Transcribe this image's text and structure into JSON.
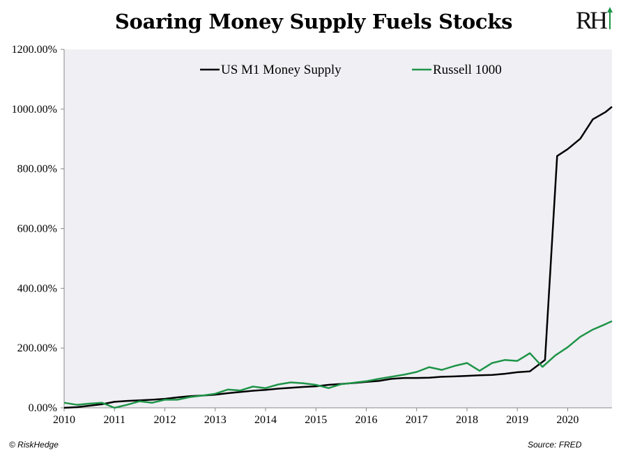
{
  "header": {
    "title": "Soaring Money Supply Fuels Stocks",
    "logo_text": "RH"
  },
  "footer": {
    "left": "© RiskHedge",
    "right": "Source: FRED"
  },
  "colors": {
    "m1": "#000000",
    "russell": "#1e9447",
    "plot_bg": "#efeff4",
    "axis": "#888888"
  },
  "chart_data": {
    "type": "line",
    "title": "Soaring Money Supply Fuels Stocks",
    "xlabel": "",
    "ylabel": "",
    "xlim": [
      2010,
      2020.88
    ],
    "ylim": [
      0,
      1200
    ],
    "x_ticks": [
      2010,
      2011,
      2012,
      2013,
      2014,
      2015,
      2016,
      2017,
      2018,
      2019,
      2020
    ],
    "x_tick_labels": [
      "2010",
      "2011",
      "2012",
      "2013",
      "2014",
      "2015",
      "2016",
      "2017",
      "2018",
      "2019",
      "2020"
    ],
    "y_ticks": [
      0,
      200,
      400,
      600,
      800,
      1000,
      1200
    ],
    "y_tick_labels": [
      "0.00%",
      "200.00%",
      "400.00%",
      "600.00%",
      "800.00%",
      "1000.00%",
      "1200.00%"
    ],
    "grid": false,
    "legend_position": "top",
    "series": [
      {
        "name": "US M1 Money Supply",
        "color": "#000000",
        "points": [
          [
            2010.0,
            0
          ],
          [
            2010.25,
            2
          ],
          [
            2010.5,
            7
          ],
          [
            2010.75,
            12
          ],
          [
            2011.0,
            20
          ],
          [
            2011.25,
            23
          ],
          [
            2011.5,
            25
          ],
          [
            2011.75,
            27
          ],
          [
            2012.0,
            30
          ],
          [
            2012.25,
            35
          ],
          [
            2012.5,
            39
          ],
          [
            2012.75,
            41
          ],
          [
            2013.0,
            44
          ],
          [
            2013.25,
            49
          ],
          [
            2013.5,
            53
          ],
          [
            2013.75,
            57
          ],
          [
            2014.0,
            60
          ],
          [
            2014.25,
            64
          ],
          [
            2014.5,
            67
          ],
          [
            2014.75,
            70
          ],
          [
            2015.0,
            72
          ],
          [
            2015.25,
            77
          ],
          [
            2015.5,
            80
          ],
          [
            2015.75,
            83
          ],
          [
            2016.0,
            87
          ],
          [
            2016.25,
            90
          ],
          [
            2016.5,
            97
          ],
          [
            2016.75,
            100
          ],
          [
            2017.0,
            100
          ],
          [
            2017.25,
            101
          ],
          [
            2017.5,
            104
          ],
          [
            2017.75,
            105
          ],
          [
            2018.0,
            107
          ],
          [
            2018.25,
            109
          ],
          [
            2018.5,
            110
          ],
          [
            2018.75,
            114
          ],
          [
            2019.0,
            119
          ],
          [
            2019.25,
            122
          ],
          [
            2019.55,
            160
          ],
          [
            2019.79,
            843
          ],
          [
            2020.0,
            866
          ],
          [
            2020.25,
            901
          ],
          [
            2020.5,
            966
          ],
          [
            2020.75,
            990
          ],
          [
            2020.88,
            1008
          ]
        ]
      },
      {
        "name": "Russell 1000",
        "color": "#1e9447",
        "points": [
          [
            2010.0,
            17
          ],
          [
            2010.25,
            10
          ],
          [
            2010.5,
            14
          ],
          [
            2010.75,
            17
          ],
          [
            2011.0,
            0
          ],
          [
            2011.25,
            10
          ],
          [
            2011.5,
            22
          ],
          [
            2011.75,
            17
          ],
          [
            2012.0,
            27
          ],
          [
            2012.25,
            27
          ],
          [
            2012.5,
            36
          ],
          [
            2012.75,
            41
          ],
          [
            2013.0,
            47
          ],
          [
            2013.25,
            61
          ],
          [
            2013.5,
            58
          ],
          [
            2013.75,
            71
          ],
          [
            2014.0,
            66
          ],
          [
            2014.25,
            78
          ],
          [
            2014.5,
            85
          ],
          [
            2014.75,
            82
          ],
          [
            2015.0,
            77
          ],
          [
            2015.25,
            66
          ],
          [
            2015.5,
            79
          ],
          [
            2015.75,
            84
          ],
          [
            2016.0,
            89
          ],
          [
            2016.25,
            97
          ],
          [
            2016.5,
            104
          ],
          [
            2016.75,
            111
          ],
          [
            2017.0,
            120
          ],
          [
            2017.25,
            136
          ],
          [
            2017.5,
            127
          ],
          [
            2017.75,
            140
          ],
          [
            2018.0,
            150
          ],
          [
            2018.25,
            124
          ],
          [
            2018.5,
            150
          ],
          [
            2018.75,
            160
          ],
          [
            2019.0,
            157
          ],
          [
            2019.25,
            183
          ],
          [
            2019.5,
            137
          ],
          [
            2019.75,
            175
          ],
          [
            2020.0,
            203
          ],
          [
            2020.25,
            238
          ],
          [
            2020.5,
            262
          ],
          [
            2020.75,
            280
          ],
          [
            2020.88,
            290
          ]
        ]
      }
    ]
  }
}
